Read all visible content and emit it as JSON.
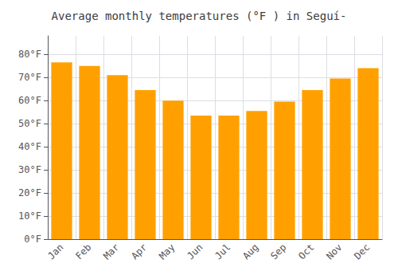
{
  "chart_data": {
    "type": "bar",
    "title": "Average monthly temperatures (°F ) in Seguí-",
    "categories": [
      "Jan",
      "Feb",
      "Mar",
      "Apr",
      "May",
      "Jun",
      "Jul",
      "Aug",
      "Sep",
      "Oct",
      "Nov",
      "Dec"
    ],
    "values": [
      76.5,
      75.0,
      71.0,
      64.5,
      60.0,
      53.5,
      53.5,
      55.5,
      59.5,
      64.5,
      69.5,
      74.0
    ],
    "color": "#FFA000",
    "ylim": [
      0,
      88
    ],
    "yticks": [
      {
        "value": 0,
        "label": "0°F"
      },
      {
        "value": 10,
        "label": "10°F"
      },
      {
        "value": 20,
        "label": "20°F"
      },
      {
        "value": 30,
        "label": "30°F"
      },
      {
        "value": 40,
        "label": "40°F"
      },
      {
        "value": 50,
        "label": "50°F"
      },
      {
        "value": 60,
        "label": "60°F"
      },
      {
        "value": 70,
        "label": "70°F"
      },
      {
        "value": 80,
        "label": "80°F"
      }
    ],
    "grid": true
  }
}
